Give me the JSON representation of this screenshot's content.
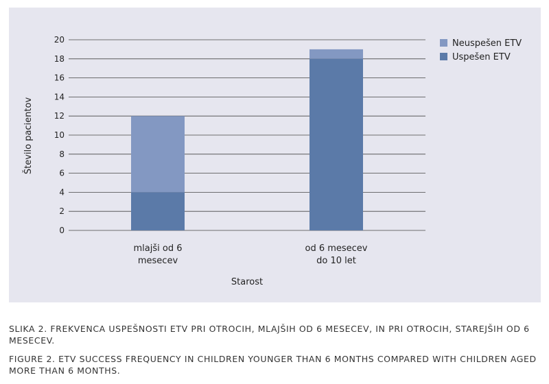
{
  "chart_data": {
    "type": "bar",
    "stacked": true,
    "categories": [
      [
        "mlajši od 6",
        "mesecev"
      ],
      [
        "od 6 mesecev",
        "do 10 let"
      ]
    ],
    "series": [
      {
        "name": "Uspešen ETV",
        "values": [
          4,
          18
        ],
        "color": "#5b7aa8"
      },
      {
        "name": "Neuspešen ETV",
        "values": [
          8,
          1
        ],
        "color": "#8398c2"
      }
    ],
    "xlabel": "Starost",
    "ylabel": "Število pacientov",
    "ylim": [
      0,
      20
    ],
    "yticks": [
      0,
      2,
      4,
      6,
      8,
      10,
      12,
      14,
      16,
      18,
      20
    ],
    "grid": true,
    "legend_position": "top-right",
    "legend_order": [
      "Neuspešen ETV",
      "Uspešen ETV"
    ]
  },
  "captions": {
    "slovenian": "SLIKA 2. FREKVENCA USPEŠNOSTI ETV PRI OTROCIH, MLAJŠIH OD 6 MESECEV, IN PRI OTROCIH, STAREJŠIH OD 6 MESECEV.",
    "english": "FIGURE 2. ETV SUCCESS FREQUENCY IN CHILDREN YOUNGER THAN 6 MONTHS COMPARED WITH CHILDREN AGED MORE THAN 6 MONTHS."
  },
  "colors": {
    "panel_background": "#e6e6ef",
    "grid": "#444444"
  }
}
